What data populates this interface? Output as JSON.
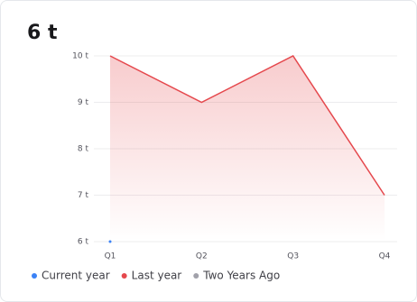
{
  "chart_data": {
    "type": "line",
    "title": "6 t",
    "categories": [
      "Q1",
      "Q2",
      "Q3",
      "Q4"
    ],
    "series": [
      {
        "name": "Current year",
        "color": "#3b82f6",
        "values": [
          6,
          null,
          null,
          null
        ]
      },
      {
        "name": "Last year",
        "color": "#e5484d",
        "values": [
          10,
          9,
          10,
          7
        ],
        "area": true
      },
      {
        "name": "Two Years Ago",
        "color": "#a1a1aa",
        "values": [
          null,
          null,
          null,
          null
        ]
      }
    ],
    "ylim": [
      6,
      10
    ],
    "yticks": [
      {
        "value": 6,
        "label": "6 t"
      },
      {
        "value": 7,
        "label": "7 t"
      },
      {
        "value": 8,
        "label": "8 t"
      },
      {
        "value": 9,
        "label": "9 t"
      },
      {
        "value": 10,
        "label": "10 t"
      }
    ],
    "grid": true,
    "legend": "bottom"
  }
}
